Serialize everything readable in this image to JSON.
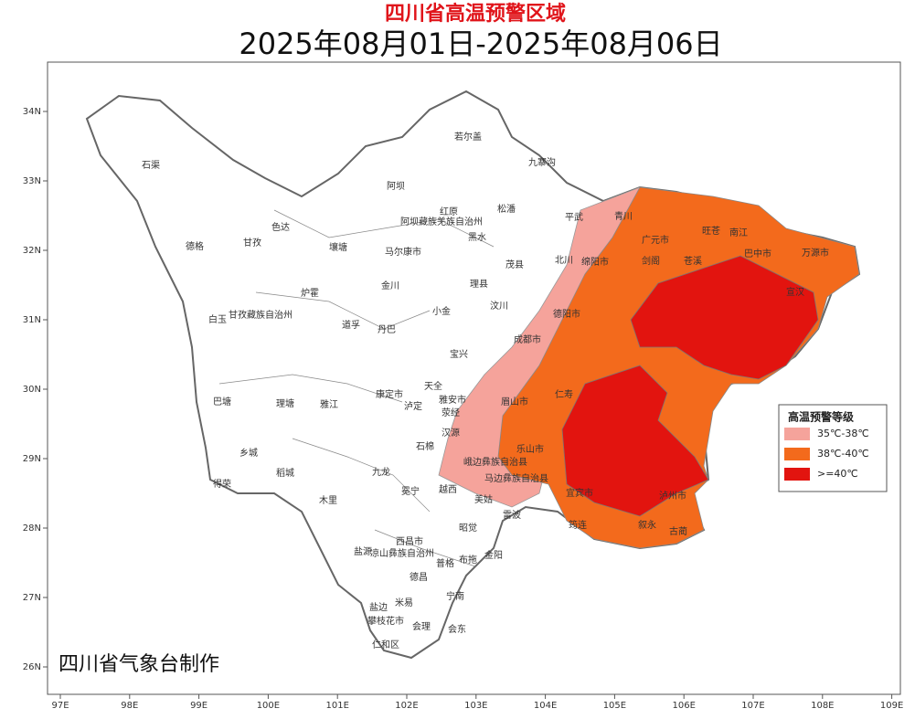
{
  "title": "四川省高温预警区域",
  "subtitle": "2025年08月01日-2025年08月06日",
  "lon_ticks": [
    "97E",
    "98E",
    "99E",
    "100E",
    "101E",
    "102E",
    "103E",
    "104E",
    "105E",
    "106E",
    "107E",
    "108E",
    "109E"
  ],
  "lat_ticks": [
    "34N",
    "33N",
    "32N",
    "31N",
    "30N",
    "29N",
    "28N",
    "27N",
    "26N"
  ],
  "legend": {
    "title": "高温预警等级",
    "items": [
      {
        "label": "35℃-38℃",
        "color": "#f5a39b"
      },
      {
        "label": "38℃-40℃",
        "color": "#f36a1c"
      },
      {
        "label": ">=40℃",
        "color": "#e2140f"
      }
    ]
  },
  "footer": "四川省气象台制作",
  "places": [
    "石渠",
    "德格",
    "甘孜",
    "色达",
    "白玉",
    "甘孜藏族自治州",
    "巴塘",
    "理塘",
    "乡城",
    "稻城",
    "得荣",
    "雅江",
    "炉霍",
    "道孚",
    "丹巴",
    "康定市",
    "泸定",
    "九龙",
    "木里",
    "冕宁",
    "若尔盖",
    "阿坝",
    "红原",
    "松潘",
    "九寨沟",
    "平武",
    "阿坝藏族羌族自治州",
    "壤塘",
    "马尔康市",
    "黑水",
    "金川",
    "茂县",
    "理县",
    "小金",
    "汶川",
    "宝兴",
    "天全",
    "雅安市",
    "荥经",
    "汉源",
    "石棉",
    "越西",
    "美姑",
    "昭觉",
    "西昌市",
    "凉山彝族自治州",
    "德昌",
    "盐源",
    "盐边",
    "米易",
    "会理",
    "会东",
    "宁南",
    "普格",
    "布拖",
    "金阳",
    "雷波",
    "攀枝花市",
    "仁和区",
    "青川",
    "广元市",
    "旺苍",
    "南江",
    "巴中市",
    "万源市",
    "宣汉",
    "剑阁",
    "绵阳市",
    "北川",
    "苍溪",
    "德阳市",
    "成都市",
    "眉山市",
    "乐山市",
    "仁寿",
    "宜宾市",
    "泸州市",
    "古蔺",
    "叙永",
    "筠连",
    "峨边彝族自治县",
    "马边彝族自治县"
  ]
}
